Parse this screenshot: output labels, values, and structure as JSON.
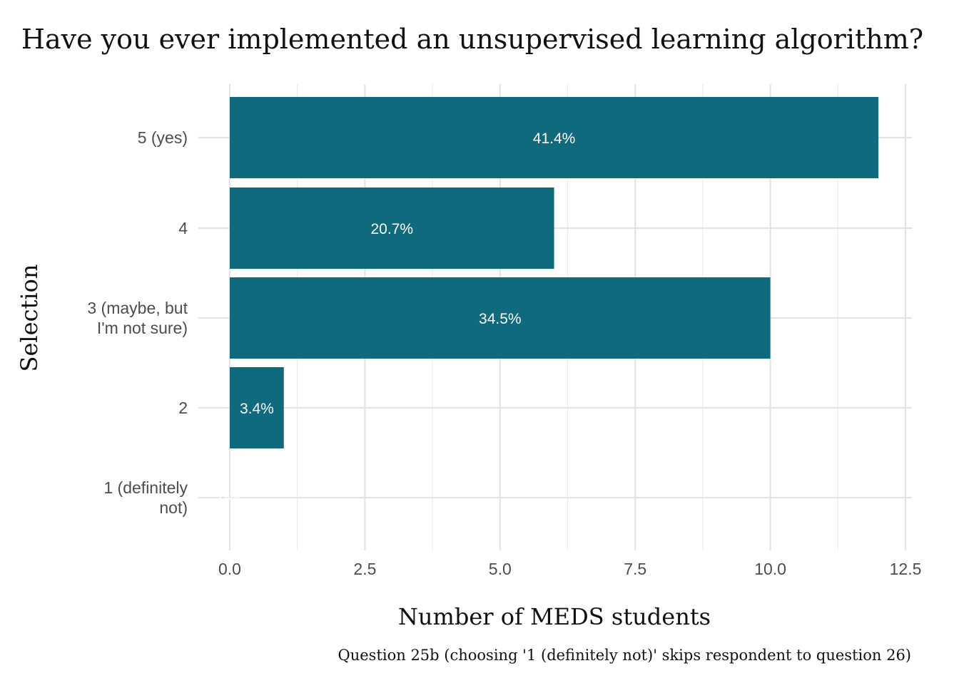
{
  "chart_data": {
    "type": "bar",
    "orientation": "horizontal",
    "title": "Have you ever implemented an unsupervised learning algorithm?",
    "xlabel": "Number of MEDS students",
    "ylabel": "Selection",
    "caption": "Question 25b (choosing '1 (definitely not)' skips respondent to question 26)",
    "categories": [
      [
        "5 (yes)"
      ],
      [
        "4"
      ],
      [
        "3 (maybe, but",
        "I'm not sure)"
      ],
      [
        "2"
      ],
      [
        "1 (definitely",
        "not)"
      ]
    ],
    "values": [
      12,
      6,
      10,
      1,
      0
    ],
    "data_labels": [
      "41.4%",
      "20.7%",
      "34.5%",
      "3.4%",
      "0%"
    ],
    "xlim": [
      0,
      12.5
    ],
    "x_ticks": [
      0,
      2.5,
      5,
      7.5,
      10,
      12.5
    ],
    "x_tick_labels": [
      "0.0",
      "2.5",
      "5.0",
      "7.5",
      "10.0",
      "12.5"
    ],
    "bar_color": "#106a7d",
    "grid": true,
    "legend": "none"
  }
}
